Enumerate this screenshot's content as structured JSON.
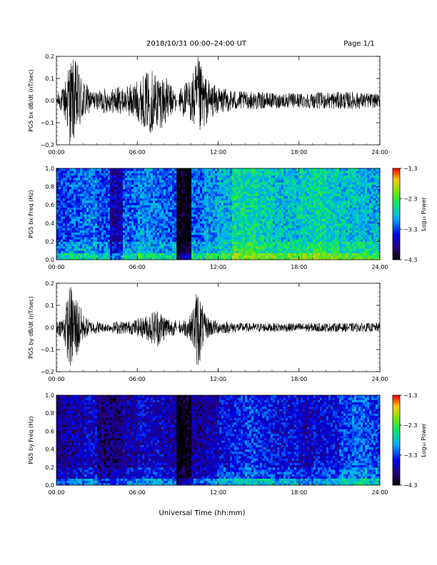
{
  "header": {
    "title": "2018/10/31   00:00–24:00 UT",
    "page": "Page 1/1"
  },
  "x_axis": {
    "label": "Universal Time (hh:mm)",
    "ticks": [
      "00:00",
      "06:00",
      "12:00",
      "18:00",
      "24:00"
    ]
  },
  "chart_data": [
    {
      "type": "line",
      "ylabel": "PG5 bx dB/dt (nT/sec)",
      "xlim": [
        0,
        24
      ],
      "ylim": [
        -0.2,
        0.2
      ],
      "yticks": [
        "0.2",
        "0.1",
        "0.0",
        "−0.1",
        "−0.2"
      ],
      "series": [
        {
          "x": [
            0,
            0.5,
            1,
            1.5,
            2,
            2.5,
            3,
            3.5,
            4,
            4.5,
            5,
            5.5,
            6,
            6.5,
            7,
            7.5,
            8,
            8.5,
            9,
            9.5,
            10,
            10.5,
            11,
            11.5,
            12,
            13,
            14,
            15,
            16,
            17,
            18,
            19,
            20,
            21,
            22,
            23,
            24
          ],
          "y": [
            0.03,
            0.06,
            0.2,
            0.18,
            0.1,
            0.05,
            0.04,
            0.06,
            0.05,
            0.07,
            0.05,
            0.08,
            0.09,
            0.12,
            0.15,
            0.13,
            0.12,
            0.07,
            0.05,
            0.08,
            0.1,
            0.2,
            0.12,
            0.08,
            0.06,
            0.05,
            0.04,
            0.04,
            0.035,
            0.035,
            0.035,
            0.035,
            0.04,
            0.04,
            0.04,
            0.035,
            0.03
          ]
        }
      ]
    },
    {
      "type": "heatmap",
      "ylabel": "PG5 bx Freq (Hz)",
      "xlim": [
        0,
        24
      ],
      "ylim": [
        0,
        1
      ],
      "yticks": [
        "1.0",
        "0.8",
        "0.6",
        "0.4",
        "0.2",
        "0.0"
      ],
      "colorbar": {
        "label": "Log₁₀ Power",
        "ticks": [
          "−1.3",
          "−2.3",
          "−3.3",
          "−4.3"
        ],
        "range": [
          -4.3,
          -1.3
        ]
      },
      "gap_hour": 9.0,
      "hour_levels": [
        -3.3,
        -3.2,
        -3.1,
        -3.3,
        -3.7,
        -3.2,
        -3.0,
        -3.1,
        -3.2,
        -4.3,
        -3.2,
        -3.0,
        -2.9,
        -2.6,
        -2.6,
        -2.7,
        -2.8,
        -2.8,
        -2.7,
        -2.6,
        -2.7,
        -2.8,
        -2.8,
        -2.9
      ]
    },
    {
      "type": "line",
      "ylabel": "PG5 by dB/dt (nT/sec)",
      "xlim": [
        0,
        24
      ],
      "ylim": [
        -0.2,
        0.2
      ],
      "yticks": [
        "0.2",
        "0.1",
        "0.0",
        "−0.1",
        "−0.2"
      ],
      "series": [
        {
          "x": [
            0,
            0.5,
            1,
            1.5,
            2,
            2.5,
            3,
            3.5,
            4,
            4.5,
            5,
            5.5,
            6,
            6.5,
            7,
            7.5,
            8,
            8.5,
            9,
            9.5,
            10,
            10.5,
            11,
            11.5,
            12,
            13,
            14,
            15,
            16,
            17,
            18,
            19,
            20,
            21,
            22,
            23,
            24
          ],
          "y": [
            0.03,
            0.05,
            0.2,
            0.15,
            0.06,
            0.03,
            0.03,
            0.02,
            0.02,
            0.03,
            0.03,
            0.03,
            0.04,
            0.05,
            0.07,
            0.09,
            0.06,
            0.04,
            0.03,
            0.04,
            0.06,
            0.2,
            0.06,
            0.04,
            0.03,
            0.025,
            0.02,
            0.02,
            0.02,
            0.02,
            0.02,
            0.02,
            0.02,
            0.02,
            0.02,
            0.02,
            0.02
          ]
        }
      ]
    },
    {
      "type": "heatmap",
      "ylabel": "PG5 by Freq (Hz)",
      "xlim": [
        0,
        24
      ],
      "ylim": [
        0,
        1
      ],
      "yticks": [
        "1.0",
        "0.8",
        "0.6",
        "0.4",
        "0.2",
        "0.0"
      ],
      "colorbar": {
        "label": "Log₁₀ Power",
        "ticks": [
          "−1.3",
          "−2.3",
          "−3.3",
          "−4.3"
        ],
        "range": [
          -4.3,
          -1.3
        ]
      },
      "gap_hour": 9.0,
      "hour_levels": [
        -3.8,
        -3.7,
        -3.6,
        -3.9,
        -3.9,
        -3.7,
        -3.6,
        -3.6,
        -3.7,
        -4.3,
        -3.8,
        -3.7,
        -3.5,
        -3.4,
        -3.3,
        -3.4,
        -3.5,
        -3.5,
        -3.6,
        -3.5,
        -3.5,
        -3.3,
        -3.2,
        -3.3
      ]
    }
  ]
}
